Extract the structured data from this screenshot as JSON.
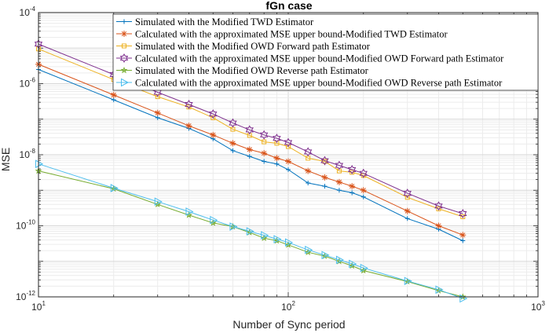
{
  "chart_data": {
    "type": "line",
    "title": "fGn case",
    "xlabel": "Number of Sync period",
    "ylabel": "MSE",
    "xscale": "log",
    "yscale": "log",
    "xlim": [
      10,
      1000
    ],
    "ylim": [
      1e-12,
      0.0001
    ],
    "grid": "major and minor",
    "legend_location": "top-right",
    "x_ticks": [
      {
        "base": "10",
        "exp": "1"
      },
      {
        "base": "10",
        "exp": "2"
      },
      {
        "base": "10",
        "exp": "3"
      }
    ],
    "y_ticks": [
      {
        "base": "10",
        "exp": "-12",
        "value": 1e-12
      },
      {
        "base": "10",
        "exp": "-10",
        "value": 1e-10
      },
      {
        "base": "10",
        "exp": "-8",
        "value": 1e-08
      },
      {
        "base": "10",
        "exp": "-6",
        "value": 1e-06
      },
      {
        "base": "10",
        "exp": "-4",
        "value": 0.0001
      }
    ],
    "x": [
      10,
      20,
      30,
      40,
      50,
      60,
      70,
      80,
      90,
      100,
      120,
      140,
      160,
      180,
      200,
      300,
      400,
      500
    ],
    "series": [
      {
        "name": "Simulated with the Modified TWD Estimator",
        "color": "#0072BD",
        "marker": "plus",
        "values": [
          2.5e-06,
          3.5e-07,
          1.1e-07,
          5.5e-08,
          2.8e-08,
          1.3e-08,
          9e-09,
          6.5e-09,
          5.5e-09,
          3.8e-09,
          1.6e-09,
          1.3e-09,
          1e-09,
          8.5e-10,
          6.5e-10,
          1.6e-10,
          8e-11,
          3.8e-11
        ]
      },
      {
        "name": "Calculated with the approximated MSE upper bound-Modified TWD Estimator",
        "color": "#D95319",
        "marker": "asterisk",
        "values": [
          3.5e-06,
          4.8e-07,
          1.5e-07,
          6.5e-08,
          3.6e-08,
          2.1e-08,
          1.4e-08,
          1.1e-08,
          8e-09,
          6.5e-09,
          3.5e-09,
          2.3e-09,
          1.7e-09,
          1.3e-09,
          1e-09,
          2.6e-10,
          1e-10,
          5.5e-11
        ]
      },
      {
        "name": "Simulated with the Modified OWD Forward path Estimator",
        "color": "#EDB120",
        "marker": "square",
        "values": [
          9.5e-06,
          1.3e-06,
          4.3e-07,
          2.2e-07,
          1.1e-07,
          5.2e-08,
          3.5e-08,
          2.3e-08,
          2.1e-08,
          1.7e-08,
          8e-09,
          6.5e-09,
          3.5e-09,
          3.2e-09,
          2.6e-09,
          6.3e-10,
          3e-10,
          1.8e-10
        ]
      },
      {
        "name": "Calculated with the approximated MSE upper bound-Modified OWD Forward path Estimator",
        "color": "#7E2F8E",
        "marker": "hexagram",
        "values": [
          1.3e-05,
          1.8e-06,
          5.7e-07,
          2.6e-07,
          1.4e-07,
          7.8e-08,
          5e-08,
          3.6e-08,
          2.9e-08,
          2.2e-08,
          1.2e-08,
          6.8e-09,
          5e-09,
          3.8e-09,
          3e-09,
          8.2e-10,
          3.6e-10,
          2.2e-10
        ]
      },
      {
        "name": "Simulated with the Modified OWD Reverse path Estimator",
        "color": "#77AC30",
        "marker": "pentagram",
        "values": [
          3.5e-09,
          1.1e-09,
          4e-10,
          2e-10,
          1.2e-10,
          9.5e-11,
          6.5e-11,
          4.5e-11,
          3.8e-11,
          2.9e-11,
          1.8e-11,
          1.4e-11,
          1e-11,
          7.5e-12,
          5.5e-12,
          2.7e-12,
          1.5e-12,
          1e-12
        ]
      },
      {
        "name": "Calculated with the approximated MSE upper bound-Modified OWD Reverse path Estimator",
        "color": "#4DBEEE",
        "marker": "triangle-right",
        "values": [
          5.5e-09,
          1.15e-09,
          4.8e-10,
          2.5e-10,
          1.45e-10,
          9.5e-11,
          7e-11,
          5.4e-11,
          4.2e-11,
          3.4e-11,
          2.1e-11,
          1.5e-11,
          1.1e-11,
          8.5e-12,
          6.5e-12,
          2.8e-12,
          1.6e-12,
          9e-13
        ]
      }
    ]
  }
}
